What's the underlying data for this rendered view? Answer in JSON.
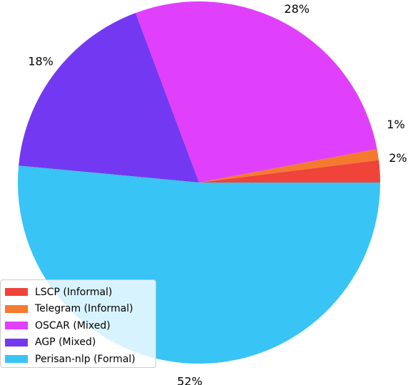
{
  "chart_data": {
    "type": "pie",
    "title": "",
    "labels": [
      "LSCP (Informal)",
      "Telegram (Informal)",
      "OSCAR (Mixed)",
      "AGP (Mixed)",
      "Perisan-nlp (Formal)"
    ],
    "values": [
      2,
      1,
      28,
      18,
      52
    ],
    "value_labels": [
      "2%",
      "1%",
      "28%",
      "18%",
      "52%"
    ],
    "colors": [
      "#f0433a",
      "#f47a30",
      "#e040fb",
      "#7339f2",
      "#38c4f5"
    ],
    "start_angle_deg": 0,
    "direction": "counterclockwise",
    "legend_position": "lower-left"
  }
}
